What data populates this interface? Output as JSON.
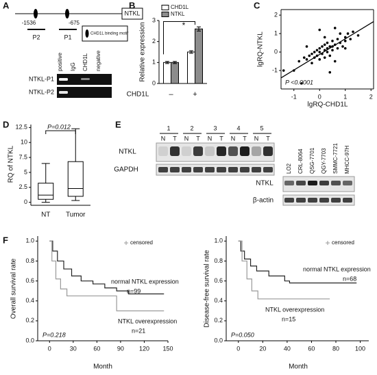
{
  "panel_labels": [
    "A",
    "B",
    "C",
    "D",
    "E",
    "F"
  ],
  "panel_a": {
    "gene": "NTKL",
    "sites": [
      "-1536",
      "-675"
    ],
    "primers": [
      "P2",
      "P1"
    ],
    "legend": "CHD1L binding motif",
    "lanes": [
      "positive",
      "IgG",
      "CHD1L",
      "negative"
    ],
    "rows": [
      "NTKL-P1",
      "NTKL-P2"
    ]
  },
  "panel_e": {
    "groups": [
      "1",
      "2",
      "3",
      "4",
      "5"
    ],
    "lanes": [
      "N",
      "T",
      "N",
      "T",
      "N",
      "T",
      "N",
      "T",
      "N",
      "T"
    ],
    "rows": [
      "NTKL",
      "GAPDH"
    ],
    "cell_lines": [
      "LO2",
      "CRL-8064",
      "QSG-7701",
      "QGY-7703",
      "SMMC-7721",
      "MHCC-97H"
    ],
    "cell_rows": [
      "NTKL",
      "β-actin"
    ]
  },
  "chart_data": [
    {
      "type": "bar",
      "ylabel": "Relative expression",
      "xlabel": "CHD1L",
      "categories": [
        "–",
        "+"
      ],
      "series": [
        {
          "name": "CHD1L",
          "color": "#ffffff",
          "values": [
            1.0,
            1.5
          ],
          "errors": [
            0.05,
            0.06
          ]
        },
        {
          "name": "NTKL",
          "color": "#8c8c8c",
          "values": [
            1.0,
            2.6
          ],
          "errors": [
            0.05,
            0.1
          ]
        }
      ],
      "ylim": [
        0,
        3
      ],
      "yticks": [
        0,
        1,
        2,
        3
      ],
      "annotations": [
        "*"
      ]
    },
    {
      "type": "scatter",
      "xlabel": "lgRQ-CHD1L",
      "ylabel": "lgRQ-NTKL",
      "color": "#000000",
      "x": [
        -1.0,
        -0.8,
        -0.7,
        -0.6,
        -0.5,
        -0.4,
        -0.3,
        -0.3,
        -0.2,
        -0.2,
        -0.1,
        -0.1,
        0,
        0,
        0,
        0.1,
        0.1,
        0.2,
        0.2,
        0.2,
        0.3,
        0.3,
        0.3,
        0.4,
        0.4,
        0.5,
        0.5,
        0.5,
        0.6,
        0.6,
        0.7,
        0.7,
        0.8,
        0.8,
        0.9,
        1.0,
        1.0,
        1.1,
        1.2,
        1.3,
        1.5,
        0,
        -0.5,
        0.4,
        -1.4,
        0.6,
        1.0,
        0.2
      ],
      "values": [
        -1.0,
        -0.5,
        -1.7,
        -0.3,
        -0.4,
        -0.2,
        -0.1,
        -0.6,
        0,
        -0.3,
        0.1,
        -0.2,
        0,
        0.2,
        -0.4,
        0.3,
        -0.1,
        0.1,
        0.4,
        -0.3,
        0.2,
        0.5,
        0,
        0.3,
        -0.2,
        0.6,
        0.1,
        0.3,
        0.4,
        -0.5,
        0.7,
        0.2,
        0.5,
        1.0,
        0.3,
        0.8,
        0.6,
        1.0,
        0.7,
        1.1,
        0.9,
        1.2,
        0.3,
        -1.1,
        -1.0,
        1.3,
        0.2,
        0.8
      ],
      "fit": {
        "x": [
          -1.5,
          2.1
        ],
        "values": [
          -1.4,
          1.65
        ]
      },
      "xlim": [
        -1.5,
        2.1
      ],
      "ylim": [
        -2,
        2.3
      ],
      "xticks": [
        -1,
        0,
        1,
        2
      ],
      "yticks": [
        -1,
        0,
        1,
        2
      ],
      "annotations": [
        "P <0.0001"
      ]
    },
    {
      "type": "box",
      "ylabel": "RQ of NTKL",
      "categories": [
        "NT",
        "Tumor"
      ],
      "boxes": [
        {
          "min": 0,
          "q1": 0.5,
          "median": 1.2,
          "q3": 3.2,
          "max": 6.5
        },
        {
          "min": 0.3,
          "q1": 1.0,
          "median": 2.3,
          "q3": 6.8,
          "max": 12.3
        }
      ],
      "ylim": [
        -0.5,
        13
      ],
      "yticks": [
        0,
        2.5,
        5,
        7.5,
        10,
        12.5
      ],
      "annotations": [
        "P=0.012"
      ]
    },
    {
      "type": "line",
      "xlabel": "Month",
      "ylabel": "Overall survival rate",
      "legend_label": "censored",
      "series": [
        {
          "name": "normal NTKL expression",
          "color": "#222222",
          "x": [
            0,
            4,
            4,
            10,
            10,
            18,
            18,
            28,
            28,
            40,
            40,
            55,
            55,
            70,
            70,
            85,
            85,
            100,
            100,
            145
          ],
          "values": [
            1,
            1,
            0.9,
            0.9,
            0.8,
            0.8,
            0.72,
            0.72,
            0.65,
            0.65,
            0.6,
            0.6,
            0.57,
            0.57,
            0.53,
            0.53,
            0.5,
            0.5,
            0.47,
            0.47
          ]
        },
        {
          "name": "NTKL overexpression",
          "color": "#999999",
          "x": [
            0,
            3,
            3,
            8,
            8,
            14,
            14,
            22,
            22,
            85,
            85,
            145
          ],
          "values": [
            1,
            1,
            0.8,
            0.8,
            0.62,
            0.62,
            0.52,
            0.52,
            0.45,
            0.45,
            0.3,
            0.3
          ]
        }
      ],
      "xlim": [
        -15,
        150
      ],
      "ylim": [
        0,
        1.05
      ],
      "xticks": [
        0,
        30,
        60,
        90,
        120,
        150
      ],
      "yticks": [
        {
          "value": 0,
          "label": "0.0"
        },
        {
          "value": 0.2,
          "label": "0.2"
        },
        {
          "value": 0.4,
          "label": "0.4"
        },
        {
          "value": 0.6,
          "label": "0.6"
        },
        {
          "value": 0.8,
          "label": "0.8"
        },
        {
          "value": 1,
          "label": "1.0"
        }
      ],
      "annotations": [
        "normal NTKL expression",
        "n=99",
        "NTKL overexpression",
        "n=21",
        "P=0.218"
      ]
    },
    {
      "type": "line",
      "xlabel": "Month",
      "ylabel": "Disease-free survival rate",
      "legend_label": "censored",
      "series": [
        {
          "name": "normal NTKL expression",
          "color": "#222222",
          "x": [
            0,
            2,
            2,
            5,
            5,
            10,
            10,
            15,
            15,
            25,
            25,
            38,
            38,
            42,
            42,
            97
          ],
          "values": [
            1,
            1,
            0.9,
            0.9,
            0.82,
            0.82,
            0.75,
            0.75,
            0.7,
            0.7,
            0.65,
            0.65,
            0.6,
            0.6,
            0.58,
            0.58
          ]
        },
        {
          "name": "NTKL overexpression",
          "color": "#999999",
          "x": [
            0,
            3,
            3,
            7,
            7,
            11,
            11,
            16,
            16,
            75
          ],
          "values": [
            1,
            1,
            0.8,
            0.8,
            0.62,
            0.62,
            0.5,
            0.5,
            0.42,
            0.42
          ]
        }
      ],
      "xlim": [
        -10,
        107
      ],
      "ylim": [
        0,
        1.05
      ],
      "xticks": [
        0,
        20,
        40,
        60,
        80,
        100
      ],
      "yticks": [
        {
          "value": 0,
          "label": "0.0"
        },
        {
          "value": 0.2,
          "label": "0.2"
        },
        {
          "value": 0.4,
          "label": "0.4"
        },
        {
          "value": 0.6,
          "label": "0.6"
        },
        {
          "value": 0.8,
          "label": "0.8"
        },
        {
          "value": 1,
          "label": "1.0"
        }
      ],
      "annotations": [
        "normal NTKL expression",
        "n=68",
        "NTKL overexpression",
        "n=15",
        "P=0.050"
      ]
    }
  ]
}
